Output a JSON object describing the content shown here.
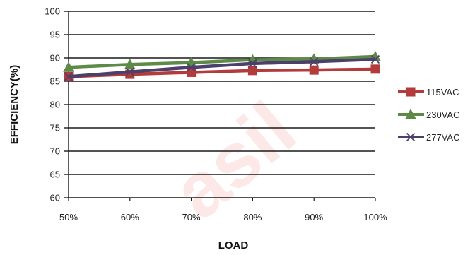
{
  "chart_data": {
    "type": "line",
    "title": "",
    "xlabel": "LOAD",
    "ylabel": "EFFICIENCY(%)",
    "categories": [
      "50%",
      "60%",
      "70%",
      "80%",
      "90%",
      "100%"
    ],
    "ylim": [
      60,
      100
    ],
    "yticks": [
      60,
      65,
      70,
      75,
      80,
      85,
      90,
      95,
      100
    ],
    "grid": "horizontal",
    "legend_position": "right",
    "series": [
      {
        "name": "115VAC",
        "values": [
          86.0,
          86.5,
          86.9,
          87.3,
          87.4,
          87.6
        ],
        "color": "#b33b3b",
        "marker": "square"
      },
      {
        "name": "230VAC",
        "values": [
          88.0,
          88.6,
          89.0,
          89.6,
          89.8,
          90.3
        ],
        "color": "#5e8a47",
        "marker": "triangle"
      },
      {
        "name": "277VAC",
        "values": [
          86.0,
          87.0,
          88.0,
          88.8,
          89.2,
          89.7
        ],
        "color": "#4d3f6b",
        "marker": "x"
      }
    ]
  },
  "watermark": "asil"
}
